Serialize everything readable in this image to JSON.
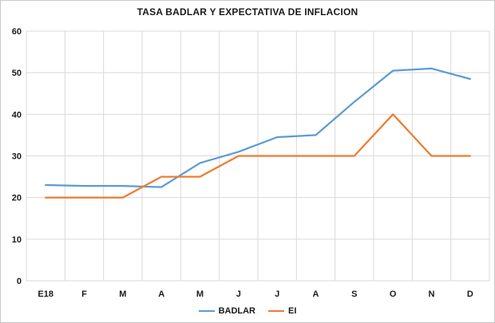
{
  "chart_data": {
    "type": "line",
    "title": "TASA BADLAR Y EXPECTATIVA DE INFLACION",
    "categories": [
      "E18",
      "F",
      "M",
      "A",
      "M",
      "J",
      "J",
      "A",
      "S",
      "O",
      "N",
      "D"
    ],
    "series": [
      {
        "name": "BADLAR",
        "color": "#5B9BD5",
        "values": [
          23,
          22.8,
          22.8,
          22.5,
          28.3,
          31,
          34.5,
          35,
          43,
          50.5,
          51,
          48.5
        ]
      },
      {
        "name": "EI",
        "color": "#ED7D31",
        "values": [
          20,
          20,
          20,
          25,
          25,
          30,
          30,
          30,
          30,
          40,
          30,
          30
        ]
      }
    ],
    "ylim": [
      0,
      60
    ],
    "y_ticks": [
      0,
      10,
      20,
      30,
      40,
      50,
      60
    ],
    "grid": true,
    "legend_position": "bottom",
    "xlabel": "",
    "ylabel": ""
  },
  "colors": {
    "grid": "#d9d9d9",
    "border": "#c8c8c8",
    "text": "#1a1a1a",
    "background": "#ffffff"
  }
}
